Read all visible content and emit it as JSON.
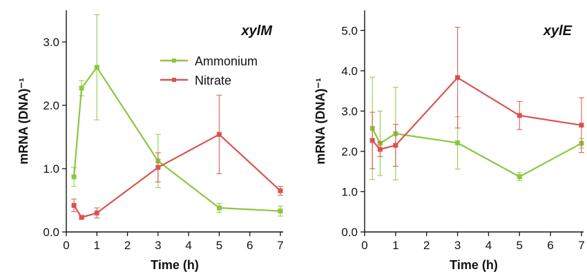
{
  "chart_data": [
    {
      "type": "line",
      "title": "xylM",
      "xlabel": "Time (h)",
      "ylabel": "mRNA (DNA)⁻¹",
      "xlim": [
        0,
        7
      ],
      "ylim": [
        0,
        3.5
      ],
      "xticks": [
        "0",
        "1",
        "2",
        "3",
        "4",
        "5",
        "6",
        "7"
      ],
      "yticks": [
        "0.0",
        "1.0",
        "2.0",
        "3.0"
      ],
      "legend": "top-right",
      "series": [
        {
          "name": "Ammonium",
          "color": "#8cc63f",
          "x": [
            0.25,
            0.5,
            1,
            3,
            5,
            7
          ],
          "values": [
            0.87,
            2.27,
            2.6,
            1.12,
            0.38,
            0.33
          ],
          "errors": [
            0.15,
            0.12,
            0.83,
            0.42,
            0.07,
            0.08
          ]
        },
        {
          "name": "Nitrate",
          "color": "#d9534f",
          "x": [
            0.25,
            0.5,
            1,
            3,
            5,
            7
          ],
          "values": [
            0.42,
            0.23,
            0.3,
            1.02,
            1.54,
            0.65
          ],
          "errors": [
            0.1,
            0.03,
            0.08,
            0.23,
            0.62,
            0.07
          ]
        }
      ]
    },
    {
      "type": "line",
      "title": "xylE",
      "xlabel": "Time (h)",
      "ylabel": "mRNA (DNA)⁻¹",
      "xlim": [
        0,
        7
      ],
      "ylim": [
        0,
        5.5
      ],
      "xticks": [
        "0",
        "1",
        "2",
        "3",
        "4",
        "5",
        "6",
        "7"
      ],
      "yticks": [
        "0.0",
        "1.0",
        "2.0",
        "3.0",
        "4.0",
        "5.0"
      ],
      "series": [
        {
          "name": "Ammonium",
          "color": "#8cc63f",
          "x": [
            0.25,
            0.5,
            1,
            3,
            5,
            7
          ],
          "values": [
            2.57,
            2.2,
            2.44,
            2.21,
            1.37,
            2.2
          ],
          "errors": [
            1.27,
            0.8,
            1.15,
            0.65,
            0.1,
            0.12
          ]
        },
        {
          "name": "Nitrate",
          "color": "#d9534f",
          "x": [
            0.25,
            0.5,
            1,
            3,
            5,
            7
          ],
          "values": [
            2.27,
            2.05,
            2.15,
            3.83,
            2.89,
            2.65
          ],
          "errors": [
            0.7,
            0.18,
            0.52,
            1.25,
            0.35,
            0.68
          ]
        }
      ]
    }
  ]
}
